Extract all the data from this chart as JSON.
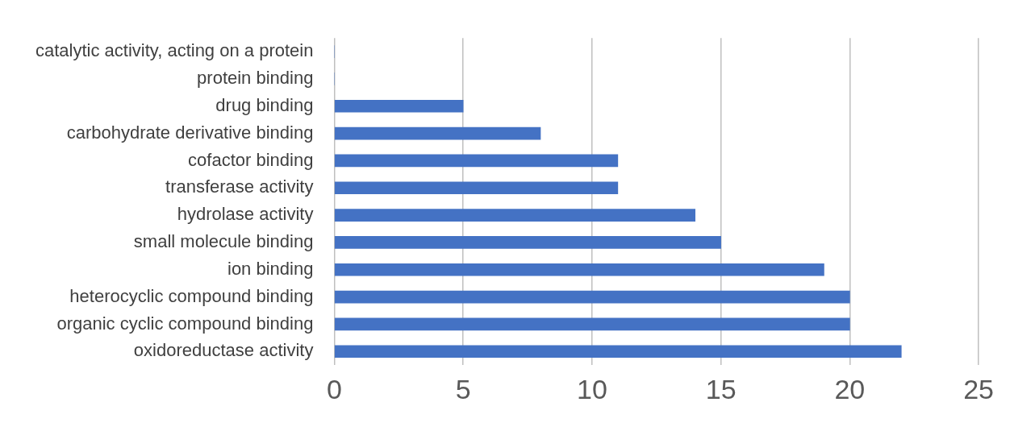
{
  "chart_data": {
    "type": "bar",
    "orientation": "horizontal",
    "categories": [
      "catalytic activity, acting on a protein",
      "protein binding",
      "drug binding",
      "carbohydrate derivative binding",
      "cofactor binding",
      "transferase activity",
      "hydrolase activity",
      "small molecule binding",
      "ion binding",
      "heterocyclic compound binding",
      "organic cyclic compound binding",
      "oxidoreductase activity"
    ],
    "values": [
      0,
      0,
      5,
      8,
      11,
      11,
      14,
      15,
      19,
      20,
      20,
      22
    ],
    "color": "#4472c4",
    "xlim": [
      0,
      25
    ],
    "xticks": [
      0,
      5,
      10,
      15,
      20,
      25
    ],
    "grid": "x",
    "legend": false
  }
}
